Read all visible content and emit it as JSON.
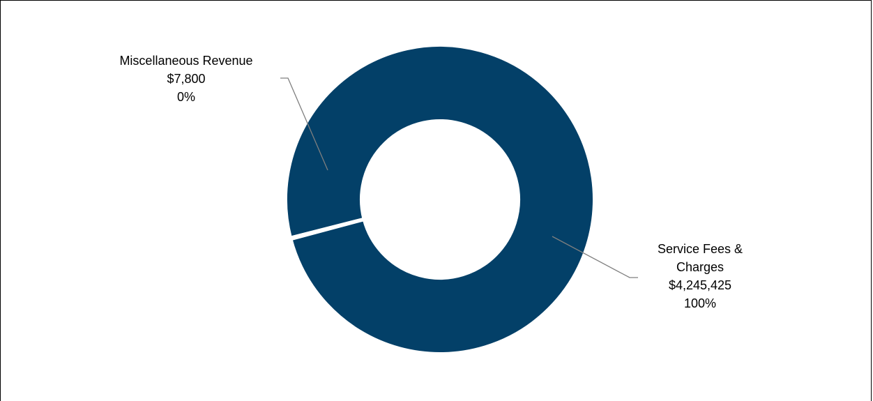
{
  "chart_data": {
    "type": "pie",
    "variant": "donut",
    "title": "",
    "slices": [
      {
        "label_lines": [
          "Service Fees &",
          "Charges"
        ],
        "value": 4245425,
        "value_text": "$4,245,425",
        "percent_text": "100%"
      },
      {
        "label_lines": [
          "Miscellaneous Revenue"
        ],
        "value": 7800,
        "value_text": "$7,800",
        "percent_text": "0%"
      }
    ],
    "colors": {
      "slice": "#034068",
      "separator": "#ffffff",
      "leader": "#7f7f7f"
    },
    "legend": "none"
  }
}
